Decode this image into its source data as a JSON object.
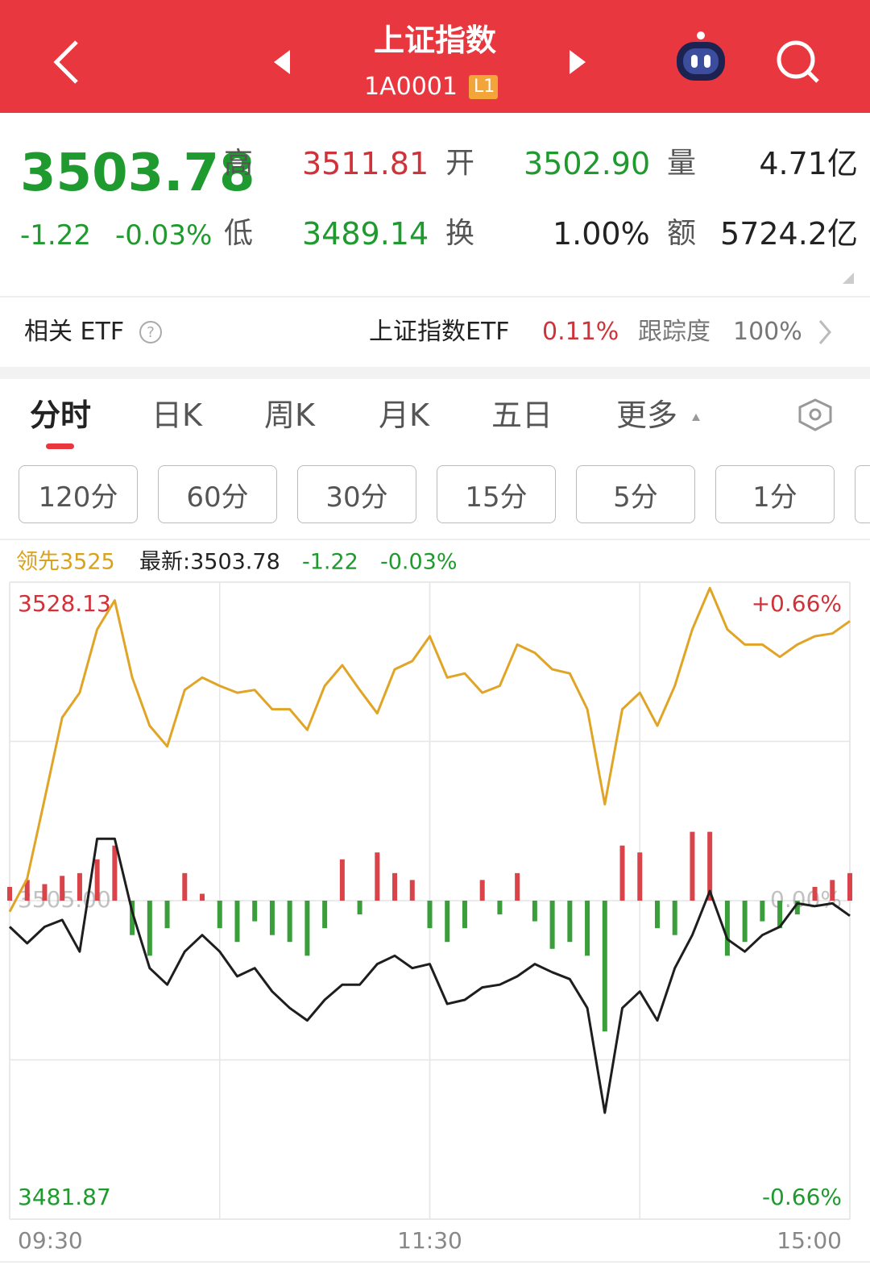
{
  "header": {
    "title": "上证指数",
    "code": "1A0001",
    "badge": "L1"
  },
  "quote": {
    "price": "3503.78",
    "change": "-1.22",
    "change_pct": "-0.03%",
    "stats": [
      {
        "label": "高",
        "value": "3511.81"
      },
      {
        "label": "开",
        "value": "3502.90"
      },
      {
        "label": "量",
        "value": "4.71亿"
      },
      {
        "label": "低",
        "value": "3489.14"
      },
      {
        "label": "换",
        "value": "1.00%"
      },
      {
        "label": "额",
        "value": "5724.2亿"
      }
    ]
  },
  "etf": {
    "label": "相关 ETF",
    "name": "上证指数ETF",
    "change": "0.11%",
    "tracking_label": "跟踪度",
    "tracking": "100%"
  },
  "tabs": [
    "分时",
    "日K",
    "周K",
    "月K",
    "五日",
    "更多"
  ],
  "periods": [
    "120分",
    "60分",
    "30分",
    "15分",
    "5分",
    "1分"
  ],
  "info": {
    "lead": "领先3525",
    "latest": "最新:3503.78",
    "change": "-1.22",
    "change_pct": "-0.03%"
  },
  "chart_data": {
    "type": "line",
    "x": [
      0,
      5,
      10,
      15,
      20,
      25,
      30,
      35,
      40,
      45,
      50,
      55,
      60,
      65,
      70,
      75,
      80,
      85,
      90,
      95,
      100,
      105,
      110,
      115,
      120,
      125,
      130,
      135,
      140,
      145,
      150,
      155,
      160,
      165,
      170,
      175,
      180,
      185,
      190,
      195,
      200,
      205,
      210,
      215,
      220,
      225,
      230,
      235,
      240
    ],
    "series": [
      {
        "color": "#e0a526",
        "values": [
          3504.2,
          3506.6,
          3512.4,
          3518.3,
          3520.1,
          3524.7,
          3526.8,
          3521.2,
          3517.7,
          3516.2,
          3520.3,
          3521.2,
          3520.6,
          3520.1,
          3520.3,
          3518.9,
          3518.9,
          3517.4,
          3520.6,
          3522.1,
          3520.3,
          3518.6,
          3521.8,
          3522.4,
          3524.2,
          3521.2,
          3521.5,
          3520.1,
          3520.6,
          3523.6,
          3523.0,
          3521.8,
          3521.5,
          3518.9,
          3512.0,
          3518.9,
          3520.1,
          3517.7,
          3520.6,
          3524.7,
          3527.7,
          3524.7,
          3523.6,
          3523.6,
          3522.7,
          3523.6,
          3524.2,
          3524.4,
          3525.3
        ]
      },
      {
        "color": "#1e1e1e",
        "values": [
          3503.1,
          3501.9,
          3503.1,
          3503.6,
          3501.3,
          3509.5,
          3509.5,
          3504.2,
          3500.1,
          3498.9,
          3501.3,
          3502.5,
          3501.3,
          3499.5,
          3500.1,
          3498.4,
          3497.2,
          3496.3,
          3497.8,
          3498.9,
          3498.9,
          3500.4,
          3501.0,
          3500.1,
          3500.4,
          3497.5,
          3497.8,
          3498.7,
          3498.9,
          3499.5,
          3500.4,
          3499.8,
          3499.3,
          3497.2,
          3489.6,
          3497.2,
          3498.4,
          3496.3,
          3500.1,
          3502.5,
          3505.7,
          3502.2,
          3501.3,
          3502.5,
          3503.1,
          3504.8,
          3504.6,
          3504.8,
          3503.9
        ]
      }
    ],
    "bars": {
      "up_color": "#d9434a",
      "down_color": "#3a9e3a",
      "values": [
        1.0,
        1.5,
        1.2,
        1.8,
        2.0,
        3.0,
        4.0,
        -2.5,
        -4.0,
        -2.0,
        2.0,
        0.5,
        -2.0,
        -3.0,
        -1.5,
        -2.5,
        -3.0,
        -4.0,
        -2.0,
        3.0,
        -1.0,
        3.5,
        2.0,
        1.5,
        -2.0,
        -3.0,
        -2.0,
        1.5,
        -1.0,
        2.0,
        -1.5,
        -3.5,
        -3.0,
        -4.0,
        -9.5,
        4.0,
        3.5,
        -2.0,
        -2.5,
        5.0,
        5.0,
        -4.0,
        -3.0,
        -1.5,
        -2.0,
        -1.0,
        1.0,
        1.5,
        2.0
      ]
    },
    "xlim": [
      0,
      240
    ],
    "xticks": [
      {
        "value": 0,
        "label": "09:30"
      },
      {
        "value": 120,
        "label": "11:30"
      },
      {
        "value": 240,
        "label": "15:00"
      }
    ],
    "ylim": [
      3481.87,
      3528.13
    ],
    "yticks": [
      3481.87,
      {
        "value": 3505,
        "label": "3505.00"
      },
      3528.13
    ],
    "y2lim": [
      -0.66,
      0.66
    ],
    "y2ticks": [
      {
        "value": -0.66,
        "label": "-0.66%"
      },
      {
        "value": 0,
        "label": "0.00%"
      },
      {
        "value": 0.66,
        "label": "+0.66%"
      }
    ],
    "up_color": "#d0323a",
    "down_color": "#1f9a2e",
    "flat_color": "#999999"
  }
}
